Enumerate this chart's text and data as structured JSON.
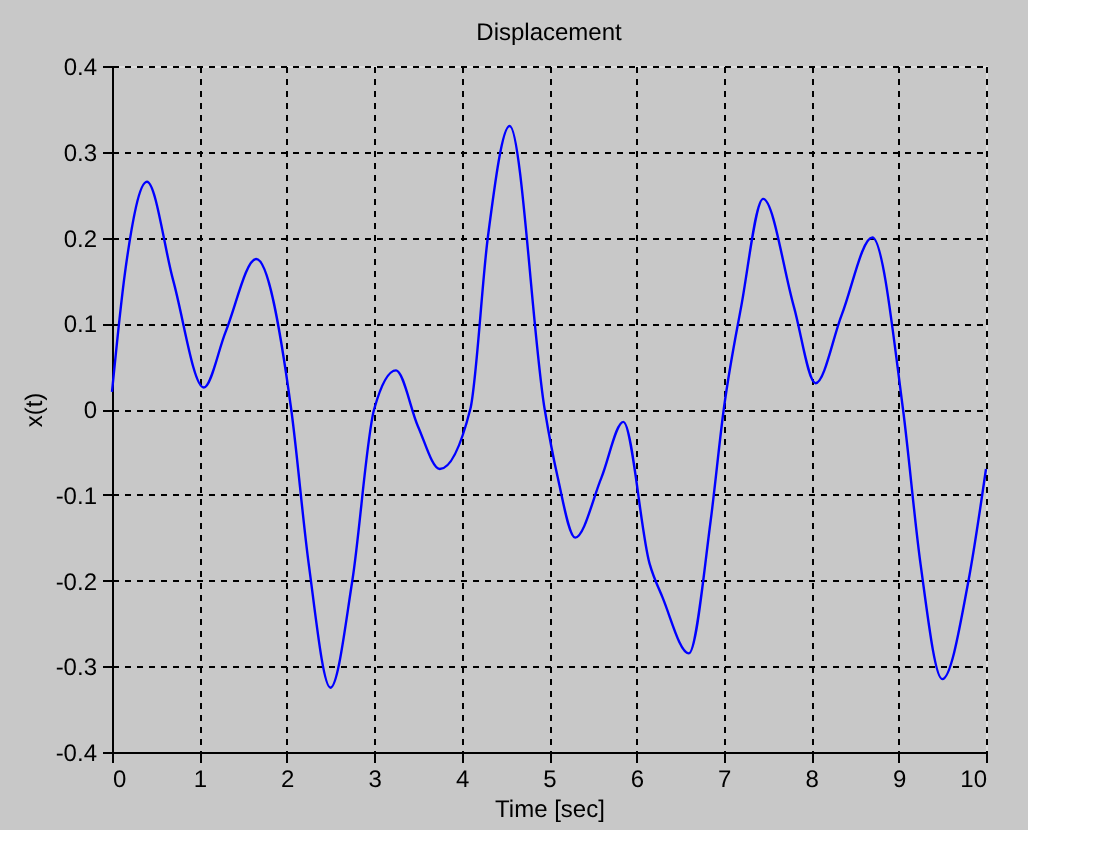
{
  "chart_data": {
    "type": "line",
    "title": "Displacement",
    "xlabel": "Time [sec]",
    "ylabel": "x(t)",
    "x": [
      0,
      0.15,
      0.4,
      0.7,
      1.05,
      1.3,
      1.65,
      2.05,
      2.25,
      2.5,
      2.75,
      3.0,
      3.25,
      3.5,
      3.75,
      4.1,
      4.3,
      4.55,
      4.95,
      5.1,
      5.3,
      5.6,
      5.85,
      6.15,
      6.3,
      6.6,
      6.85,
      7.0,
      7.2,
      7.45,
      7.8,
      8.05,
      8.35,
      8.7,
      9.05,
      9.25,
      9.5,
      9.8,
      10
    ],
    "series": [
      {
        "color": "#0000ff",
        "values": [
          0.02,
          0.16,
          0.265,
          0.15,
          0.025,
          0.09,
          0.175,
          0.0,
          -0.18,
          -0.325,
          -0.2,
          0.0,
          0.045,
          -0.02,
          -0.07,
          0.0,
          0.2,
          0.33,
          0.0,
          -0.08,
          -0.15,
          -0.08,
          -0.015,
          -0.18,
          -0.22,
          -0.285,
          -0.13,
          0.0,
          0.12,
          0.245,
          0.12,
          0.03,
          0.11,
          0.2,
          0.0,
          -0.18,
          -0.315,
          -0.2,
          -0.07
        ]
      }
    ],
    "xlim": [
      0,
      10
    ],
    "xticks": [
      0,
      1,
      2,
      3,
      4,
      5,
      6,
      7,
      8,
      9,
      10
    ],
    "ylim": [
      -0.4,
      0.4
    ],
    "yticks": [
      -0.4,
      -0.3,
      -0.2,
      -0.1,
      0,
      0.1,
      0.2,
      0.3,
      0.4
    ],
    "grid": true,
    "line_style": "solid",
    "marker": "none",
    "legend": false
  }
}
